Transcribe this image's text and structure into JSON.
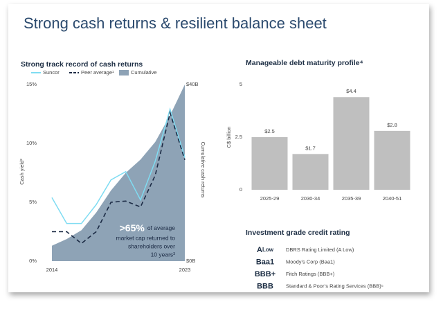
{
  "title": "Strong cash returns & resilient balance sheet",
  "chart_data": [
    {
      "type": "line",
      "title": "Strong track record of cash returns",
      "categories": [
        "2014",
        null,
        null,
        null,
        null,
        null,
        null,
        null,
        null,
        "2023"
      ],
      "series": [
        {
          "name": "Suncor",
          "color": "#7fdcf2",
          "style": "solid",
          "values": [
            5.4,
            3.2,
            3.2,
            4.8,
            6.9,
            7.6,
            5.2,
            8.5,
            12.9,
            8.8
          ]
        },
        {
          "name": "Peer average¹",
          "color": "#1b2a44",
          "style": "dashed",
          "values": [
            2.5,
            2.5,
            1.5,
            2.5,
            5.0,
            5.1,
            4.6,
            7.3,
            12.6,
            8.6
          ]
        },
        {
          "name": "Cumulative",
          "color": "#8ea3b6",
          "style": "area",
          "axis": "y2",
          "values": [
            3.5,
            5,
            7,
            11,
            16,
            20,
            23,
            27,
            33,
            40
          ]
        }
      ],
      "ylabel": "Cash yield²",
      "y2label": "Cumulative cash returns",
      "ylim": [
        0,
        15
      ],
      "yticks": [
        {
          "value": 0,
          "label": "0%"
        },
        {
          "value": 5,
          "label": "5%"
        },
        {
          "value": 10,
          "label": "10%"
        },
        {
          "value": 15,
          "label": "15%"
        }
      ],
      "y2lim": [
        0,
        40
      ],
      "y2ticks": [
        {
          "value": 0,
          "label": "$0B"
        },
        {
          "value": 40,
          "label": "$40B"
        }
      ],
      "annotation": {
        "highlight": ">65%",
        "lines": [
          "of average",
          "market cap returned to",
          "shareholders over",
          "10 years³"
        ]
      }
    },
    {
      "type": "bar",
      "title": "Manageable debt maturity profile⁴",
      "categories": [
        "2025-29",
        "2030-34",
        "2035-39",
        "2040-51"
      ],
      "values": [
        2.5,
        1.7,
        4.4,
        2.8
      ],
      "value_labels": [
        "$2.5",
        "$1.7",
        "$4.4",
        "$2.8"
      ],
      "color": "#bfbfbf",
      "ylabel": "C$ billion",
      "ylim": [
        0,
        5
      ],
      "yticks": [
        0,
        2.5,
        5
      ]
    }
  ],
  "credit_rating": {
    "title": "Investment grade credit rating",
    "rows": [
      {
        "rating": "A",
        "qualifier": "Low",
        "agency": "DBRS Rating Limited (A Low)"
      },
      {
        "rating": "Baa1",
        "agency": "Moody’s Corp (Baa1)"
      },
      {
        "rating": "BBB+",
        "agency": "Fitch Ratings (BBB+)"
      },
      {
        "rating": "BBB",
        "agency": "Standard & Poor’s Rating Services (BBB)⁵"
      }
    ]
  }
}
